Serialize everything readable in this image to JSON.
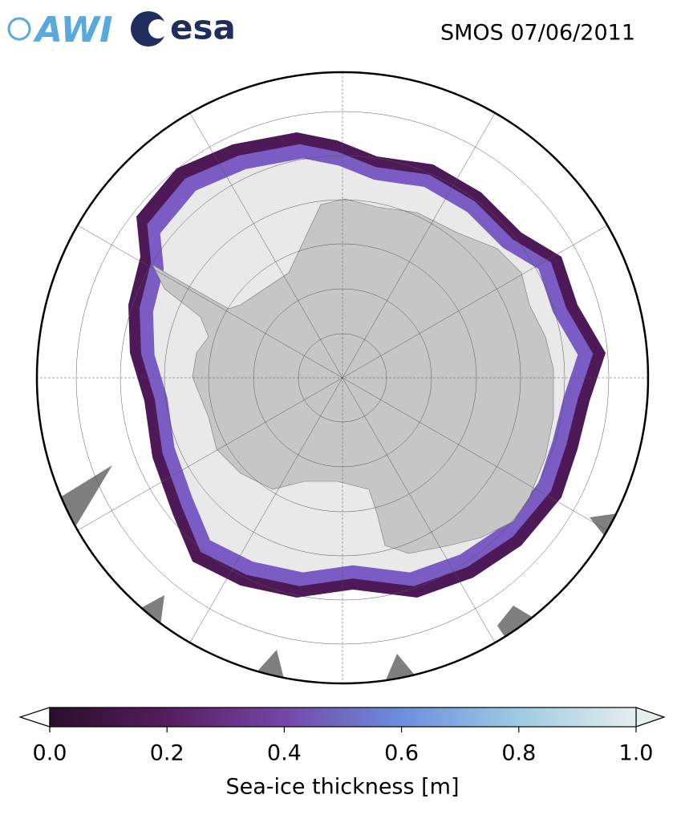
{
  "logos": {
    "awi": "AWI",
    "esa": "esa"
  },
  "title": "SMOS 07/06/2011",
  "colorbar": {
    "label": "Sea-ice thickness [m]",
    "lim": [
      0,
      1
    ],
    "ticks": [
      {
        "value": 0,
        "label": "0.0"
      },
      0.2,
      0.4,
      0.6,
      0.8,
      {
        "value": 1,
        "label": "1.0"
      }
    ],
    "colormap": [
      "#2a0e2c",
      "#561c5e",
      "#7446a8",
      "#6b8fde",
      "#9dcbe2",
      "#e6eeee"
    ]
  }
}
